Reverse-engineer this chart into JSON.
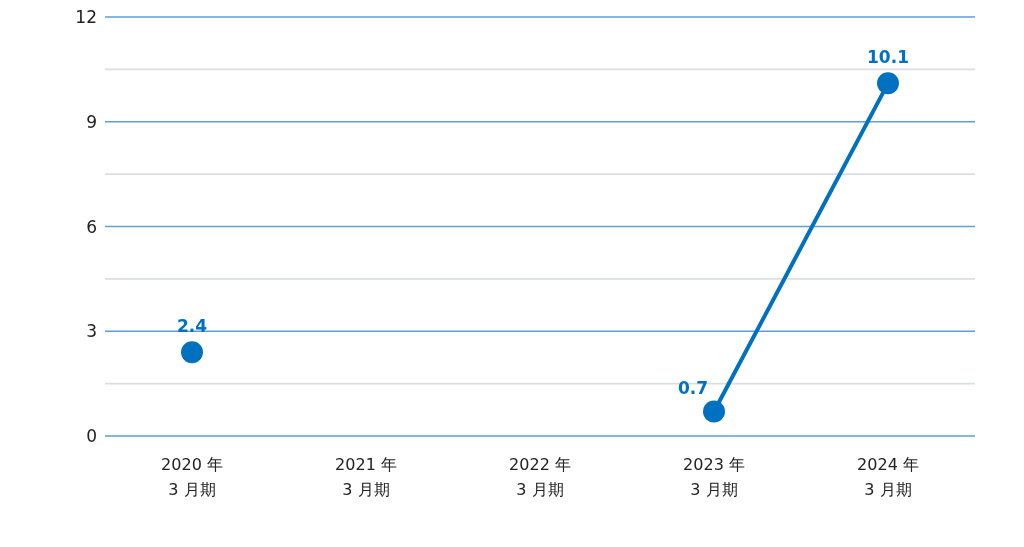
{
  "chart_data": {
    "type": "line",
    "categories": [
      "2020 年\n3 月期",
      "2021 年\n3 月期",
      "2022 年\n3 月期",
      "2023 年\n3 月期",
      "2024 年\n3 月期"
    ],
    "series": [
      {
        "color": "#0070c0",
        "values": [
          2.4,
          null,
          null,
          0.7,
          10.1
        ]
      }
    ],
    "ylim": [
      0,
      12
    ],
    "yticks": [
      0,
      {
        "value": 1.5,
        "label": null
      },
      3,
      {
        "value": 4.5,
        "label": null
      },
      6,
      {
        "value": 7.5,
        "label": null
      },
      9,
      {
        "value": 10.5,
        "label": null
      },
      12
    ],
    "grid": "y",
    "marker": "circle",
    "line_style": "solid",
    "data_labels": true
  }
}
